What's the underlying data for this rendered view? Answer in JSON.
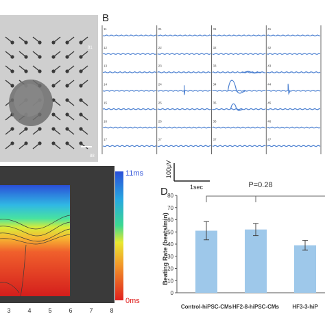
{
  "figure": {
    "panel_b_label": "B",
    "panel_d_label": "D"
  },
  "mea_image": {
    "electrode_labels": [
      "81",
      "88"
    ]
  },
  "traces": {
    "channel_labels": [
      "11",
      "21",
      "31",
      "41",
      "12",
      "22",
      "32",
      "42",
      "13",
      "23",
      "33",
      "43",
      "14",
      "24",
      "34",
      "44",
      "15",
      "25",
      "35",
      "45",
      "16",
      "26",
      "36",
      "46",
      "17",
      "27",
      "37",
      "47"
    ],
    "trace_color": "#4a7fd0",
    "scale_voltage": "100μV",
    "scale_time": "1sec"
  },
  "activation_map": {
    "colorbar_max": "11ms",
    "colorbar_min": "0ms",
    "x_ticks": [
      "3",
      "4",
      "5",
      "6",
      "7",
      "8"
    ]
  },
  "chart_data": {
    "type": "bar",
    "categories": [
      "Control-hiPSC-CMs",
      "HF2-8-hiPSC-CMs",
      "HF3-3-hiP"
    ],
    "values": [
      51,
      52,
      39
    ],
    "errors": [
      7.5,
      5.0,
      4.0
    ],
    "ylabel": "Beating Rate (beats/min)",
    "ylim": [
      0,
      80
    ],
    "yticks": [
      "0",
      "10",
      "20",
      "30",
      "40",
      "50",
      "60",
      "70",
      "80"
    ],
    "annotation": "P=0.28",
    "bar_color": "#9ec8ea"
  }
}
